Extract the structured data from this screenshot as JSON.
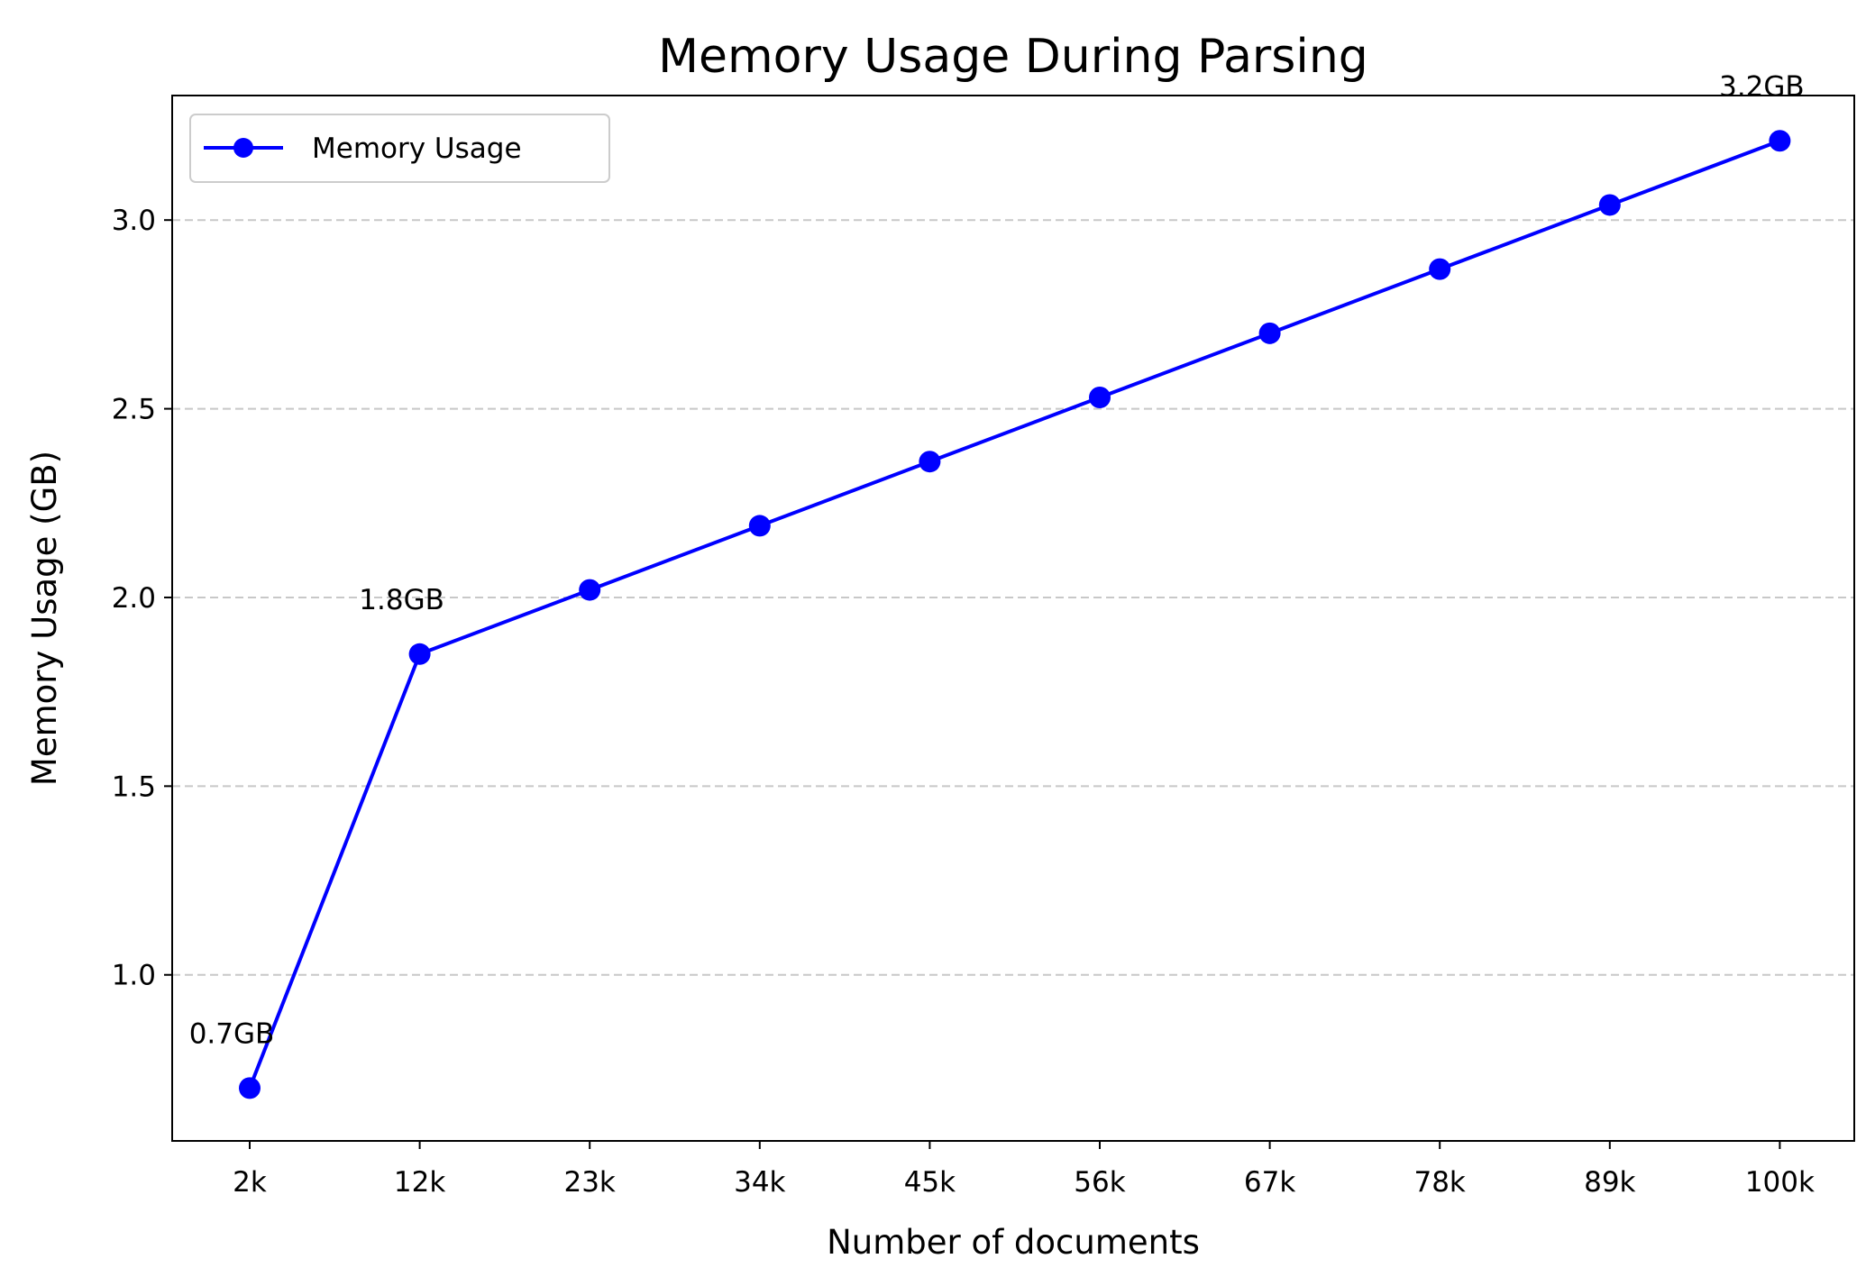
{
  "chart_data": {
    "type": "line",
    "title": "Memory Usage During Parsing",
    "xlabel": "Number of documents",
    "ylabel": "Memory Usage (GB)",
    "categories": [
      "2k",
      "12k",
      "23k",
      "34k",
      "45k",
      "56k",
      "67k",
      "78k",
      "89k",
      "100k"
    ],
    "series": [
      {
        "name": "Memory Usage",
        "color": "#0000ff",
        "marker": "circle",
        "values": [
          0.7,
          1.85,
          2.02,
          2.19,
          2.36,
          2.53,
          2.7,
          2.87,
          3.04,
          3.21
        ]
      }
    ],
    "ylim": [
      0.56,
      3.33
    ],
    "yticks": [
      1.0,
      1.5,
      2.0,
      2.5,
      3.0
    ],
    "ytick_labels": [
      "1.0",
      "1.5",
      "2.0",
      "2.5",
      "3.0"
    ],
    "grid": {
      "y": true,
      "x": false,
      "style": "dashed",
      "color": "#c8c8c8"
    },
    "legend": {
      "position": "top-left"
    },
    "annotations": [
      {
        "index": 0,
        "text": "0.7GB"
      },
      {
        "index": 1,
        "text": "1.8GB"
      },
      {
        "index": 9,
        "text": "3.2GB"
      }
    ]
  }
}
